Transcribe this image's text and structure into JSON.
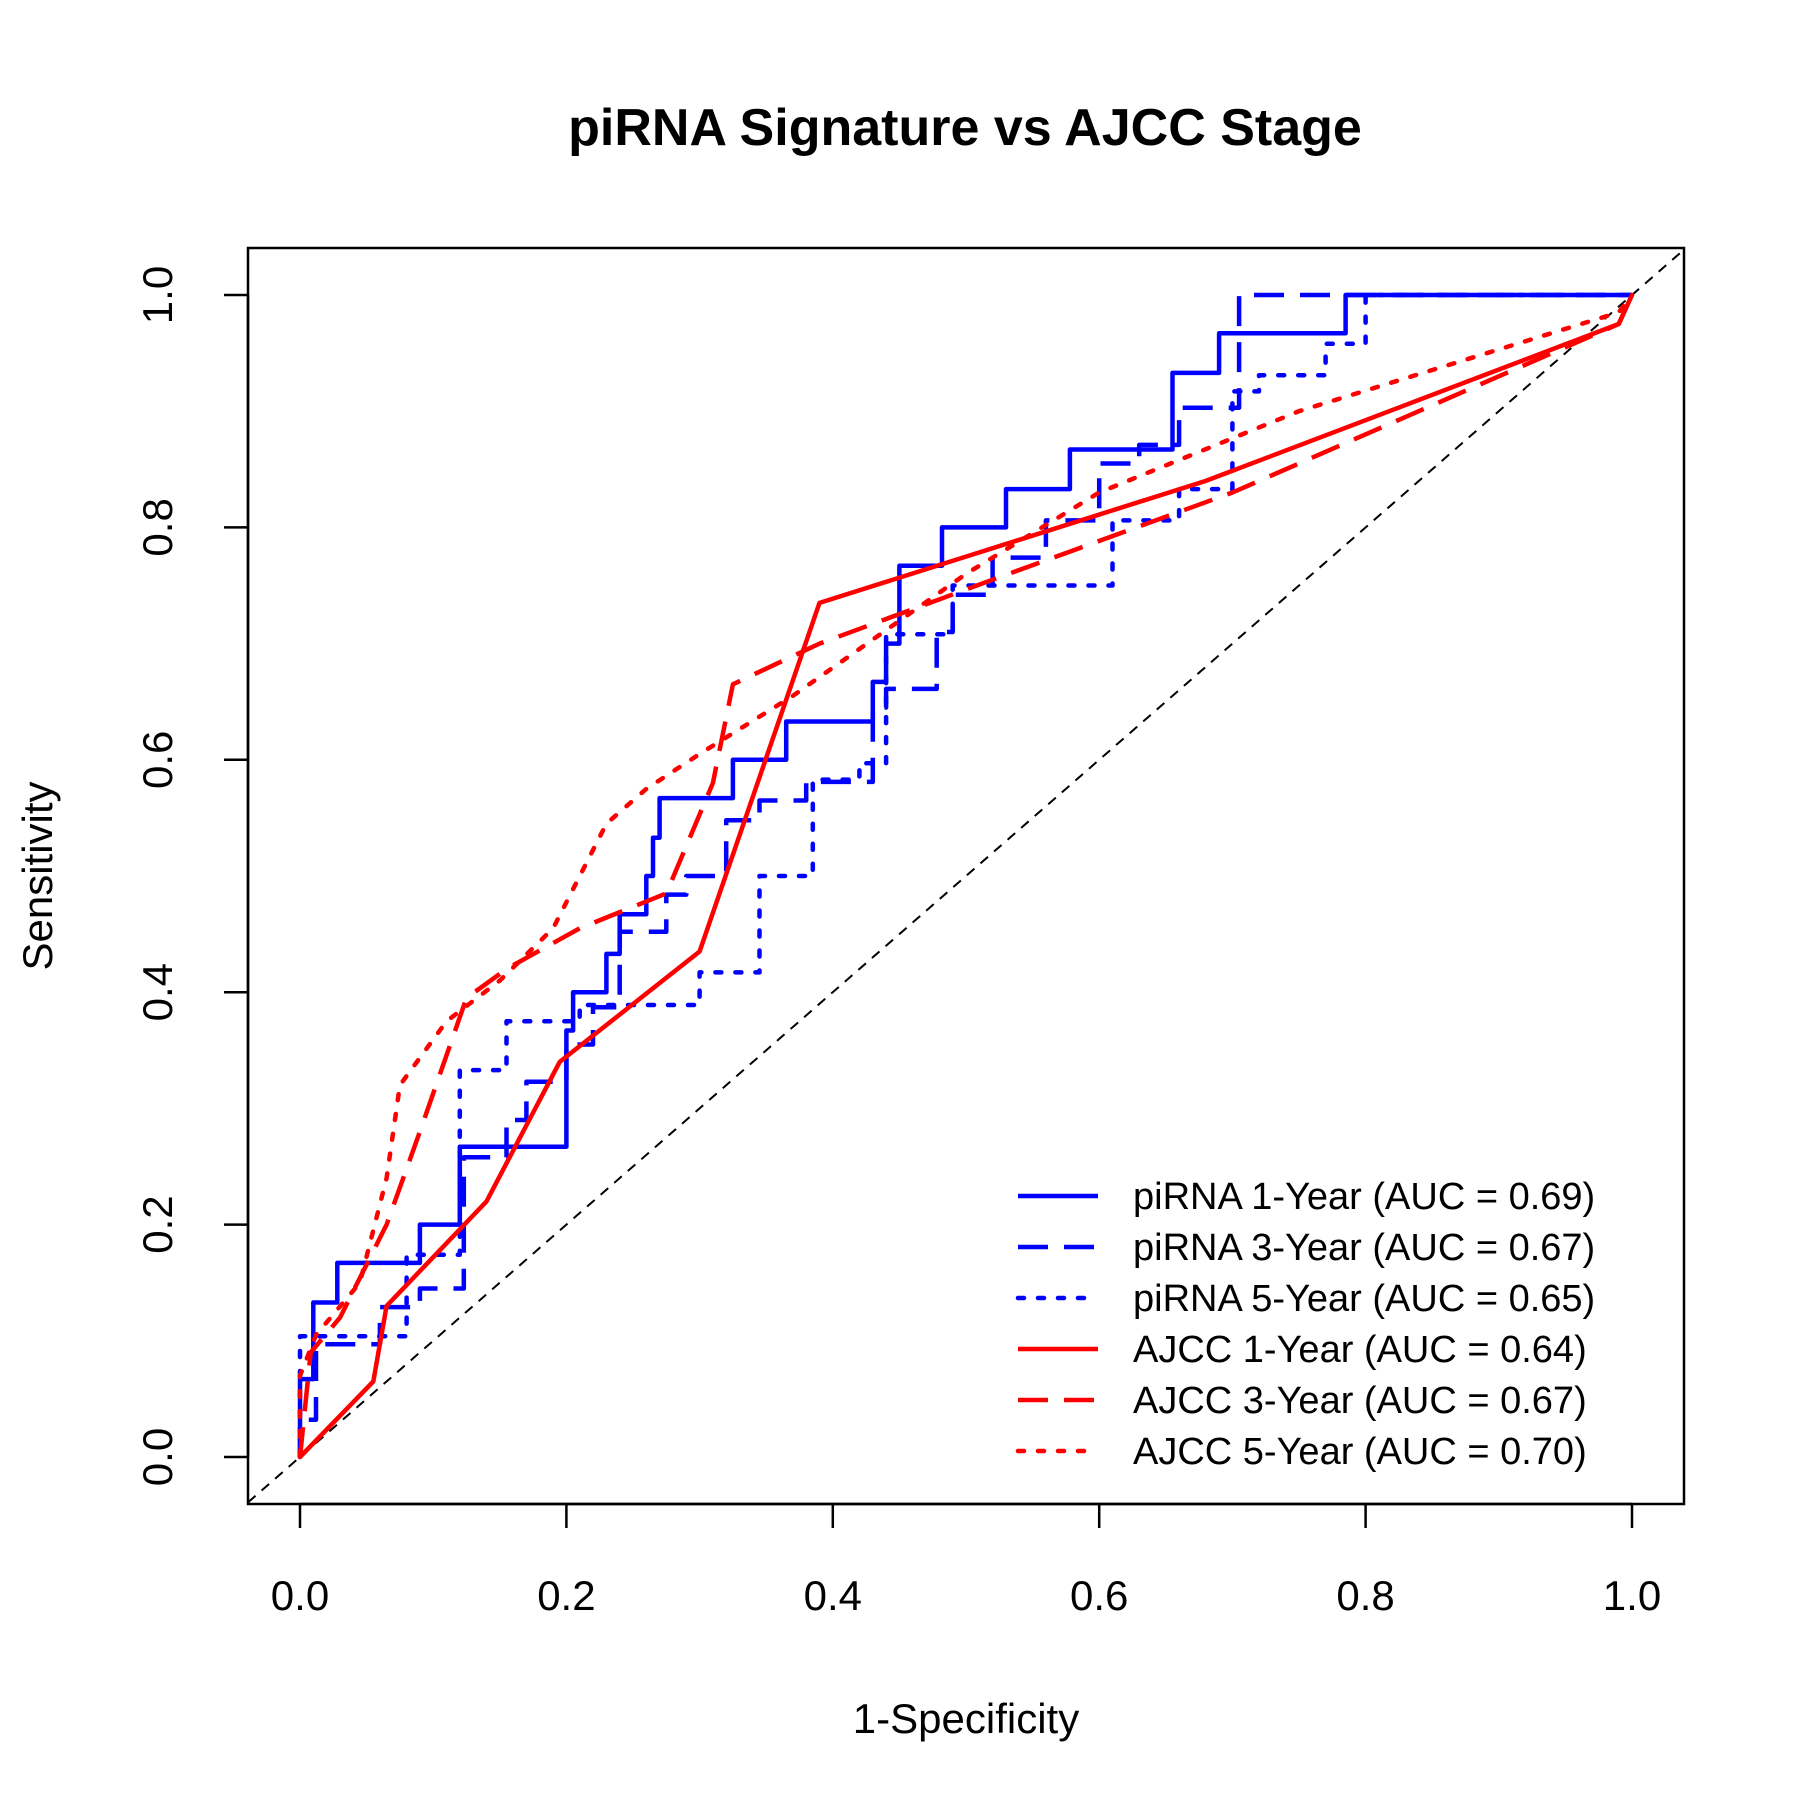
{
  "chart_data": {
    "type": "line",
    "title": "piRNA Signature vs AJCC Stage",
    "xlabel": "1-Specificity",
    "ylabel": "Sensitivity",
    "xlim": [
      0,
      1
    ],
    "ylim": [
      0,
      1
    ],
    "x_ticks": [
      "0.0",
      "0.2",
      "0.4",
      "0.6",
      "0.8",
      "1.0"
    ],
    "y_ticks": [
      "0.0",
      "0.2",
      "0.4",
      "0.6",
      "0.8",
      "1.0"
    ],
    "grid": false,
    "legend_position": "bottom-right",
    "reference_line": {
      "x": [
        0,
        1
      ],
      "y": [
        0,
        1
      ],
      "color": "#000000",
      "style": "dashed"
    },
    "series": [
      {
        "name": "piRNA 1-Year (AUC = 0.69)",
        "color": "#0000ff",
        "style": "solid",
        "points": [
          [
            0,
            0
          ],
          [
            0,
            0.067
          ],
          [
            0.01,
            0.067
          ],
          [
            0.01,
            0.133
          ],
          [
            0.028,
            0.133
          ],
          [
            0.028,
            0.167
          ],
          [
            0.09,
            0.167
          ],
          [
            0.09,
            0.2
          ],
          [
            0.12,
            0.2
          ],
          [
            0.12,
            0.267
          ],
          [
            0.2,
            0.267
          ],
          [
            0.2,
            0.367
          ],
          [
            0.205,
            0.367
          ],
          [
            0.205,
            0.4
          ],
          [
            0.23,
            0.4
          ],
          [
            0.23,
            0.433
          ],
          [
            0.24,
            0.433
          ],
          [
            0.24,
            0.467
          ],
          [
            0.26,
            0.467
          ],
          [
            0.26,
            0.5
          ],
          [
            0.265,
            0.5
          ],
          [
            0.265,
            0.533
          ],
          [
            0.27,
            0.533
          ],
          [
            0.27,
            0.567
          ],
          [
            0.325,
            0.567
          ],
          [
            0.325,
            0.6
          ],
          [
            0.365,
            0.6
          ],
          [
            0.365,
            0.633
          ],
          [
            0.43,
            0.633
          ],
          [
            0.43,
            0.667
          ],
          [
            0.44,
            0.667
          ],
          [
            0.44,
            0.7
          ],
          [
            0.45,
            0.7
          ],
          [
            0.45,
            0.767
          ],
          [
            0.482,
            0.767
          ],
          [
            0.482,
            0.8
          ],
          [
            0.53,
            0.8
          ],
          [
            0.53,
            0.833
          ],
          [
            0.578,
            0.833
          ],
          [
            0.578,
            0.867
          ],
          [
            0.655,
            0.867
          ],
          [
            0.655,
            0.933
          ],
          [
            0.69,
            0.933
          ],
          [
            0.69,
            0.967
          ],
          [
            0.785,
            0.967
          ],
          [
            0.785,
            1.0
          ],
          [
            1.0,
            1.0
          ]
        ]
      },
      {
        "name": "piRNA 3-Year (AUC = 0.67)",
        "color": "#0000ff",
        "style": "dashed",
        "points": [
          [
            0,
            0
          ],
          [
            0,
            0.032
          ],
          [
            0.012,
            0.032
          ],
          [
            0.012,
            0.097
          ],
          [
            0.06,
            0.097
          ],
          [
            0.06,
            0.129
          ],
          [
            0.09,
            0.129
          ],
          [
            0.09,
            0.145
          ],
          [
            0.123,
            0.145
          ],
          [
            0.123,
            0.258
          ],
          [
            0.155,
            0.258
          ],
          [
            0.155,
            0.29
          ],
          [
            0.17,
            0.29
          ],
          [
            0.17,
            0.323
          ],
          [
            0.2,
            0.323
          ],
          [
            0.2,
            0.355
          ],
          [
            0.22,
            0.355
          ],
          [
            0.22,
            0.387
          ],
          [
            0.24,
            0.387
          ],
          [
            0.24,
            0.452
          ],
          [
            0.275,
            0.452
          ],
          [
            0.275,
            0.484
          ],
          [
            0.29,
            0.484
          ],
          [
            0.29,
            0.5
          ],
          [
            0.32,
            0.5
          ],
          [
            0.32,
            0.548
          ],
          [
            0.345,
            0.548
          ],
          [
            0.345,
            0.565
          ],
          [
            0.38,
            0.565
          ],
          [
            0.38,
            0.581
          ],
          [
            0.43,
            0.581
          ],
          [
            0.43,
            0.645
          ],
          [
            0.44,
            0.645
          ],
          [
            0.44,
            0.661
          ],
          [
            0.478,
            0.661
          ],
          [
            0.478,
            0.71
          ],
          [
            0.49,
            0.71
          ],
          [
            0.49,
            0.742
          ],
          [
            0.52,
            0.742
          ],
          [
            0.52,
            0.774
          ],
          [
            0.56,
            0.774
          ],
          [
            0.56,
            0.806
          ],
          [
            0.6,
            0.806
          ],
          [
            0.6,
            0.855
          ],
          [
            0.63,
            0.855
          ],
          [
            0.63,
            0.871
          ],
          [
            0.66,
            0.871
          ],
          [
            0.66,
            0.903
          ],
          [
            0.705,
            0.903
          ],
          [
            0.705,
            1.0
          ],
          [
            1.0,
            1.0
          ]
        ]
      },
      {
        "name": "piRNA 5-Year (AUC = 0.65)",
        "color": "#0000ff",
        "style": "dotted",
        "points": [
          [
            0,
            0
          ],
          [
            0,
            0.104
          ],
          [
            0.08,
            0.104
          ],
          [
            0.08,
            0.174
          ],
          [
            0.12,
            0.174
          ],
          [
            0.12,
            0.333
          ],
          [
            0.155,
            0.333
          ],
          [
            0.155,
            0.375
          ],
          [
            0.21,
            0.375
          ],
          [
            0.21,
            0.389
          ],
          [
            0.3,
            0.389
          ],
          [
            0.3,
            0.417
          ],
          [
            0.345,
            0.417
          ],
          [
            0.345,
            0.5
          ],
          [
            0.385,
            0.5
          ],
          [
            0.385,
            0.583
          ],
          [
            0.42,
            0.583
          ],
          [
            0.42,
            0.597
          ],
          [
            0.44,
            0.597
          ],
          [
            0.44,
            0.708
          ],
          [
            0.49,
            0.708
          ],
          [
            0.49,
            0.75
          ],
          [
            0.61,
            0.75
          ],
          [
            0.61,
            0.806
          ],
          [
            0.66,
            0.806
          ],
          [
            0.66,
            0.833
          ],
          [
            0.7,
            0.833
          ],
          [
            0.7,
            0.917
          ],
          [
            0.72,
            0.917
          ],
          [
            0.72,
            0.931
          ],
          [
            0.77,
            0.931
          ],
          [
            0.77,
            0.958
          ],
          [
            0.8,
            0.958
          ],
          [
            0.8,
            1.0
          ],
          [
            1.0,
            1.0
          ]
        ]
      },
      {
        "name": "AJCC 1-Year (AUC = 0.64)",
        "color": "#ff0000",
        "style": "solid",
        "points": [
          [
            0,
            0
          ],
          [
            0.055,
            0.065
          ],
          [
            0.065,
            0.13
          ],
          [
            0.14,
            0.22
          ],
          [
            0.195,
            0.34
          ],
          [
            0.3,
            0.435
          ],
          [
            0.39,
            0.735
          ],
          [
            0.68,
            0.84
          ],
          [
            0.99,
            0.975
          ],
          [
            1.0,
            1.0
          ]
        ]
      },
      {
        "name": "AJCC 3-Year (AUC = 0.67)",
        "color": "#ff0000",
        "style": "dashed",
        "points": [
          [
            0,
            0
          ],
          [
            0.008,
            0.09
          ],
          [
            0.03,
            0.12
          ],
          [
            0.065,
            0.2
          ],
          [
            0.09,
            0.28
          ],
          [
            0.125,
            0.395
          ],
          [
            0.155,
            0.42
          ],
          [
            0.21,
            0.455
          ],
          [
            0.275,
            0.485
          ],
          [
            0.31,
            0.58
          ],
          [
            0.325,
            0.665
          ],
          [
            0.39,
            0.7
          ],
          [
            0.52,
            0.755
          ],
          [
            0.7,
            0.83
          ],
          [
            0.99,
            0.975
          ],
          [
            1.0,
            1.0
          ]
        ]
      },
      {
        "name": "AJCC 5-Year (AUC = 0.70)",
        "color": "#ff0000",
        "style": "dotted",
        "points": [
          [
            0,
            0
          ],
          [
            0,
            0.07
          ],
          [
            0.012,
            0.105
          ],
          [
            0.045,
            0.15
          ],
          [
            0.065,
            0.24
          ],
          [
            0.075,
            0.32
          ],
          [
            0.11,
            0.375
          ],
          [
            0.15,
            0.41
          ],
          [
            0.19,
            0.455
          ],
          [
            0.23,
            0.545
          ],
          [
            0.26,
            0.575
          ],
          [
            0.3,
            0.605
          ],
          [
            0.37,
            0.655
          ],
          [
            0.5,
            0.76
          ],
          [
            0.6,
            0.83
          ],
          [
            0.75,
            0.9
          ],
          [
            0.99,
            0.985
          ],
          [
            1.0,
            1.0
          ]
        ]
      }
    ]
  }
}
